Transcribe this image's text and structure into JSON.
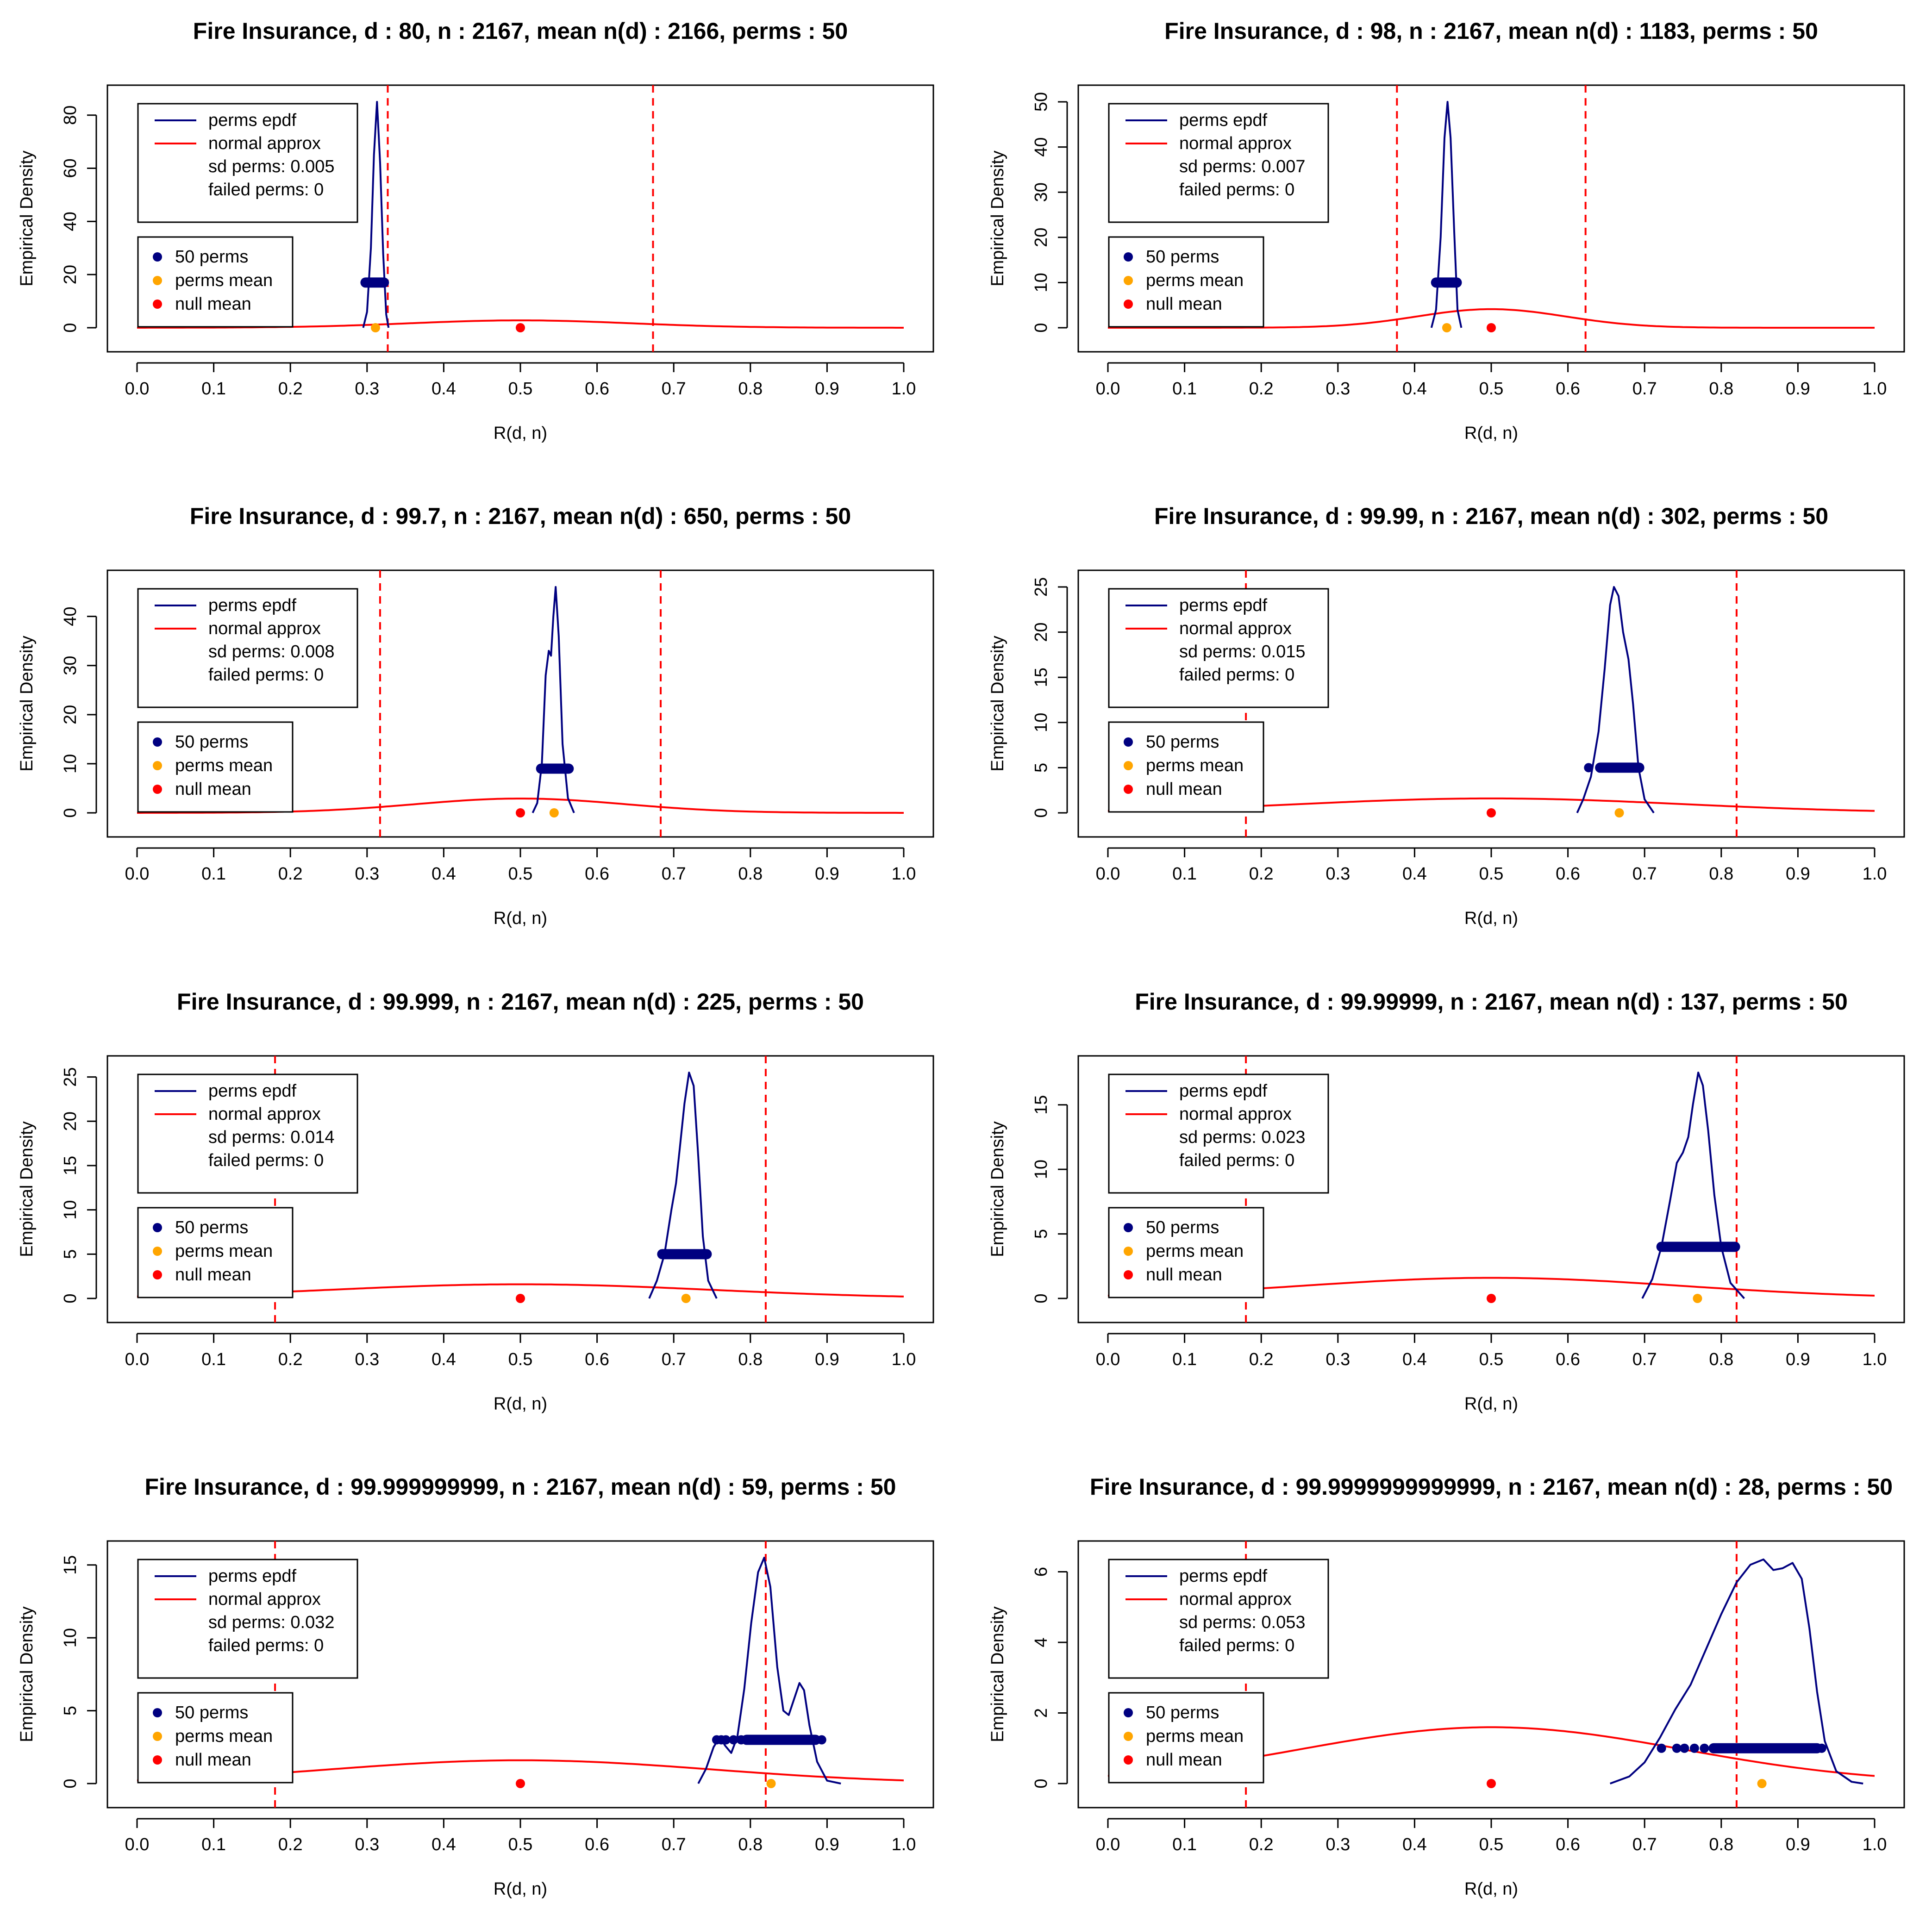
{
  "chart_data": [
    {
      "type": "line",
      "title": "Fire Insurance, d : 80, n : 2167, mean n(d) : 2166, perms : 50",
      "xlabel": "R(d, n)",
      "ylabel": "Empirical Density",
      "xlim": [
        0,
        1
      ],
      "ylim": [
        0,
        85
      ],
      "xticks": [
        "0.0",
        "0.1",
        "0.2",
        "0.3",
        "0.4",
        "0.5",
        "0.6",
        "0.7",
        "0.8",
        "0.9",
        "1.0"
      ],
      "yticks": [
        0,
        20,
        40,
        60,
        80
      ],
      "vlines": [
        0.327,
        0.673
      ],
      "normal": {
        "mean": 0.5,
        "sd": 0.144
      },
      "epdf": [
        [
          0.295,
          0
        ],
        [
          0.3,
          6
        ],
        [
          0.305,
          30
        ],
        [
          0.309,
          65
        ],
        [
          0.313,
          85
        ],
        [
          0.317,
          62
        ],
        [
          0.321,
          28
        ],
        [
          0.325,
          5
        ],
        [
          0.328,
          0
        ]
      ],
      "perm_band": {
        "y": 17,
        "from": 0.298,
        "to": 0.322
      },
      "perm_points": [],
      "perms_mean": 0.311,
      "null_mean": 0.5,
      "legend": {
        "line1": "perms epdf",
        "line2": "normal approx",
        "sd": "sd perms: 0.005",
        "failed": "failed perms: 0",
        "pts1": "50 perms",
        "pts2": "perms mean",
        "pts3": "null mean"
      }
    },
    {
      "type": "line",
      "title": "Fire Insurance, d : 98, n : 2167, mean n(d) : 1183, perms : 50",
      "xlabel": "R(d, n)",
      "ylabel": "Empirical Density",
      "xlim": [
        0,
        1
      ],
      "ylim": [
        0,
        50
      ],
      "xticks": [
        "0.0",
        "0.1",
        "0.2",
        "0.3",
        "0.4",
        "0.5",
        "0.6",
        "0.7",
        "0.8",
        "0.9",
        "1.0"
      ],
      "yticks": [
        0,
        10,
        20,
        30,
        40,
        50
      ],
      "vlines": [
        0.377,
        0.623
      ],
      "normal": {
        "mean": 0.5,
        "sd": 0.097
      },
      "epdf": [
        [
          0.422,
          0
        ],
        [
          0.428,
          4
        ],
        [
          0.434,
          20
        ],
        [
          0.439,
          42
        ],
        [
          0.443,
          50
        ],
        [
          0.447,
          42
        ],
        [
          0.452,
          20
        ],
        [
          0.456,
          4
        ],
        [
          0.461,
          0
        ]
      ],
      "perm_band": {
        "y": 10,
        "from": 0.428,
        "to": 0.455
      },
      "perm_points": [],
      "perms_mean": 0.442,
      "null_mean": 0.5,
      "legend": {
        "line1": "perms epdf",
        "line2": "normal approx",
        "sd": "sd perms: 0.007",
        "failed": "failed perms: 0",
        "pts1": "50 perms",
        "pts2": "perms mean",
        "pts3": "null mean"
      }
    },
    {
      "type": "line",
      "title": "Fire Insurance, d : 99.7, n : 2167, mean n(d) : 650, perms : 50",
      "xlabel": "R(d, n)",
      "ylabel": "Empirical Density",
      "xlim": [
        0,
        1
      ],
      "ylim": [
        0,
        46
      ],
      "xticks": [
        "0.0",
        "0.1",
        "0.2",
        "0.3",
        "0.4",
        "0.5",
        "0.6",
        "0.7",
        "0.8",
        "0.9",
        "1.0"
      ],
      "yticks": [
        0,
        10,
        20,
        30,
        40
      ],
      "vlines": [
        0.317,
        0.683
      ],
      "normal": {
        "mean": 0.5,
        "sd": 0.137
      },
      "epdf": [
        [
          0.516,
          0
        ],
        [
          0.522,
          2
        ],
        [
          0.528,
          10
        ],
        [
          0.533,
          28
        ],
        [
          0.537,
          33
        ],
        [
          0.54,
          32
        ],
        [
          0.543,
          40
        ],
        [
          0.546,
          46
        ],
        [
          0.55,
          36
        ],
        [
          0.555,
          14
        ],
        [
          0.562,
          3
        ],
        [
          0.57,
          0
        ]
      ],
      "perm_band": {
        "y": 9,
        "from": 0.527,
        "to": 0.563
      },
      "perm_points": [],
      "perms_mean": 0.544,
      "null_mean": 0.5,
      "legend": {
        "line1": "perms epdf",
        "line2": "normal approx",
        "sd": "sd perms: 0.008",
        "failed": "failed perms: 0",
        "pts1": "50 perms",
        "pts2": "perms mean",
        "pts3": "null mean"
      }
    },
    {
      "type": "line",
      "title": "Fire Insurance, d : 99.99, n : 2167, mean n(d) : 302, perms : 50",
      "xlabel": "R(d, n)",
      "ylabel": "Empirical Density",
      "xlim": [
        0,
        1
      ],
      "ylim": [
        0,
        25
      ],
      "xticks": [
        "0.0",
        "0.1",
        "0.2",
        "0.3",
        "0.4",
        "0.5",
        "0.6",
        "0.7",
        "0.8",
        "0.9",
        "1.0"
      ],
      "yticks": [
        0,
        5,
        10,
        15,
        20,
        25
      ],
      "vlines": [
        0.18,
        0.82
      ],
      "normal": {
        "mean": 0.5,
        "sd": 0.25
      },
      "epdf": [
        [
          0.612,
          0
        ],
        [
          0.62,
          1.5
        ],
        [
          0.63,
          4
        ],
        [
          0.64,
          9
        ],
        [
          0.648,
          16
        ],
        [
          0.655,
          23
        ],
        [
          0.66,
          25
        ],
        [
          0.666,
          24
        ],
        [
          0.672,
          20
        ],
        [
          0.679,
          17
        ],
        [
          0.685,
          12
        ],
        [
          0.692,
          5
        ],
        [
          0.7,
          1.5
        ],
        [
          0.712,
          0
        ]
      ],
      "perm_band": {
        "y": 5,
        "from": 0.642,
        "to": 0.693
      },
      "perm_points": [
        0.627
      ],
      "perms_mean": 0.667,
      "null_mean": 0.5,
      "legend": {
        "line1": "perms epdf",
        "line2": "normal approx",
        "sd": "sd perms: 0.015",
        "failed": "failed perms: 0",
        "pts1": "50 perms",
        "pts2": "perms mean",
        "pts3": "null mean"
      }
    },
    {
      "type": "line",
      "title": "Fire Insurance, d : 99.999, n : 2167, mean n(d) : 225, perms : 50",
      "xlabel": "R(d, n)",
      "ylabel": "Empirical Density",
      "xlim": [
        0,
        1
      ],
      "ylim": [
        0,
        25.5
      ],
      "xticks": [
        "0.0",
        "0.1",
        "0.2",
        "0.3",
        "0.4",
        "0.5",
        "0.6",
        "0.7",
        "0.8",
        "0.9",
        "1.0"
      ],
      "yticks": [
        0,
        5,
        10,
        15,
        20,
        25
      ],
      "vlines": [
        0.18,
        0.82
      ],
      "normal": {
        "mean": 0.5,
        "sd": 0.25
      },
      "epdf": [
        [
          0.668,
          0
        ],
        [
          0.678,
          2
        ],
        [
          0.688,
          5
        ],
        [
          0.697,
          10
        ],
        [
          0.703,
          13
        ],
        [
          0.708,
          17
        ],
        [
          0.714,
          22
        ],
        [
          0.72,
          25.5
        ],
        [
          0.726,
          24
        ],
        [
          0.732,
          16
        ],
        [
          0.738,
          7
        ],
        [
          0.745,
          2
        ],
        [
          0.756,
          0
        ]
      ],
      "perm_band": {
        "y": 5,
        "from": 0.685,
        "to": 0.743
      },
      "perm_points": [],
      "perms_mean": 0.716,
      "null_mean": 0.5,
      "legend": {
        "line1": "perms epdf",
        "line2": "normal approx",
        "sd": "sd perms: 0.014",
        "failed": "failed perms: 0",
        "pts1": "50 perms",
        "pts2": "perms mean",
        "pts3": "null mean"
      }
    },
    {
      "type": "line",
      "title": "Fire Insurance, d : 99.99999, n : 2167, mean n(d) : 137, perms : 50",
      "xlabel": "R(d, n)",
      "ylabel": "Empirical Density",
      "xlim": [
        0,
        1
      ],
      "ylim": [
        0,
        17.5
      ],
      "xticks": [
        "0.0",
        "0.1",
        "0.2",
        "0.3",
        "0.4",
        "0.5",
        "0.6",
        "0.7",
        "0.8",
        "0.9",
        "1.0"
      ],
      "yticks": [
        0,
        5,
        10,
        15
      ],
      "vlines": [
        0.18,
        0.82
      ],
      "normal": {
        "mean": 0.5,
        "sd": 0.25
      },
      "epdf": [
        [
          0.697,
          0
        ],
        [
          0.71,
          1.5
        ],
        [
          0.722,
          4
        ],
        [
          0.733,
          7.5
        ],
        [
          0.742,
          10.5
        ],
        [
          0.75,
          11.3
        ],
        [
          0.757,
          12.5
        ],
        [
          0.763,
          15
        ],
        [
          0.77,
          17.5
        ],
        [
          0.776,
          16.5
        ],
        [
          0.783,
          13
        ],
        [
          0.791,
          8
        ],
        [
          0.8,
          4
        ],
        [
          0.812,
          1.2
        ],
        [
          0.83,
          0
        ]
      ],
      "perm_band": {
        "y": 4,
        "from": 0.722,
        "to": 0.818
      },
      "perm_points": [],
      "perms_mean": 0.769,
      "null_mean": 0.5,
      "legend": {
        "line1": "perms epdf",
        "line2": "normal approx",
        "sd": "sd perms: 0.023",
        "failed": "failed perms: 0",
        "pts1": "50 perms",
        "pts2": "perms mean",
        "pts3": "null mean"
      }
    },
    {
      "type": "line",
      "title": "Fire Insurance, d : 99.999999999, n : 2167, mean n(d) : 59, perms : 50",
      "xlabel": "R(d, n)",
      "ylabel": "Empirical Density",
      "xlim": [
        0,
        1
      ],
      "ylim": [
        0,
        15.5
      ],
      "xticks": [
        "0.0",
        "0.1",
        "0.2",
        "0.3",
        "0.4",
        "0.5",
        "0.6",
        "0.7",
        "0.8",
        "0.9",
        "1.0"
      ],
      "yticks": [
        0,
        5,
        10,
        15
      ],
      "vlines": [
        0.18,
        0.82
      ],
      "normal": {
        "mean": 0.5,
        "sd": 0.25
      },
      "epdf": [
        [
          0.732,
          0
        ],
        [
          0.742,
          1
        ],
        [
          0.752,
          2.5
        ],
        [
          0.76,
          3.2
        ],
        [
          0.767,
          2.6
        ],
        [
          0.775,
          2.1
        ],
        [
          0.783,
          3.2
        ],
        [
          0.792,
          6.5
        ],
        [
          0.801,
          11
        ],
        [
          0.81,
          14.5
        ],
        [
          0.818,
          15.5
        ],
        [
          0.826,
          13.5
        ],
        [
          0.835,
          8
        ],
        [
          0.843,
          5
        ],
        [
          0.85,
          4.7
        ],
        [
          0.857,
          5.8
        ],
        [
          0.864,
          6.9
        ],
        [
          0.87,
          6.4
        ],
        [
          0.877,
          4
        ],
        [
          0.887,
          1.5
        ],
        [
          0.9,
          0.2
        ],
        [
          0.918,
          0
        ]
      ],
      "perm_band": {
        "y": 3,
        "from": 0.795,
        "to": 0.885
      },
      "perm_points": [
        0.756,
        0.762,
        0.768,
        0.778,
        0.788,
        0.893
      ],
      "perms_mean": 0.827,
      "null_mean": 0.5,
      "legend": {
        "line1": "perms epdf",
        "line2": "normal approx",
        "sd": "sd perms: 0.032",
        "failed": "failed perms: 0",
        "pts1": "50 perms",
        "pts2": "perms mean",
        "pts3": "null mean"
      }
    },
    {
      "type": "line",
      "title": "Fire Insurance, d : 99.9999999999999, n : 2167, mean n(d) : 28, perms : 50",
      "xlabel": "R(d, n)",
      "ylabel": "Empirical Density",
      "xlim": [
        0,
        1
      ],
      "ylim": [
        0,
        6.4
      ],
      "xticks": [
        "0.0",
        "0.1",
        "0.2",
        "0.3",
        "0.4",
        "0.5",
        "0.6",
        "0.7",
        "0.8",
        "0.9",
        "1.0"
      ],
      "yticks": [
        0,
        2,
        4,
        6
      ],
      "vlines": [
        0.18,
        0.82
      ],
      "normal": {
        "mean": 0.5,
        "sd": 0.25
      },
      "epdf": [
        [
          0.655,
          0
        ],
        [
          0.68,
          0.2
        ],
        [
          0.7,
          0.6
        ],
        [
          0.72,
          1.3
        ],
        [
          0.74,
          2.1
        ],
        [
          0.76,
          2.8
        ],
        [
          0.78,
          3.8
        ],
        [
          0.8,
          4.8
        ],
        [
          0.82,
          5.7
        ],
        [
          0.838,
          6.2
        ],
        [
          0.855,
          6.35
        ],
        [
          0.868,
          6.05
        ],
        [
          0.88,
          6.1
        ],
        [
          0.893,
          6.25
        ],
        [
          0.905,
          5.8
        ],
        [
          0.915,
          4.4
        ],
        [
          0.925,
          2.6
        ],
        [
          0.935,
          1.2
        ],
        [
          0.95,
          0.35
        ],
        [
          0.97,
          0.05
        ],
        [
          0.985,
          0
        ]
      ],
      "perm_band": {
        "y": 1,
        "from": 0.79,
        "to": 0.925
      },
      "perm_points": [
        0.722,
        0.742,
        0.752,
        0.765,
        0.778,
        0.931
      ],
      "perms_mean": 0.853,
      "null_mean": 0.5,
      "legend": {
        "line1": "perms epdf",
        "line2": "normal approx",
        "sd": "sd perms: 0.053",
        "failed": "failed perms: 0",
        "pts1": "50 perms",
        "pts2": "perms mean",
        "pts3": "null mean"
      }
    }
  ],
  "colors": {
    "epdf": "#000080",
    "normal": "#ff0000",
    "vline": "#ff0000",
    "perms_mean": "#ffa500",
    "null_mean": "#ff0000",
    "points": "#000080"
  }
}
